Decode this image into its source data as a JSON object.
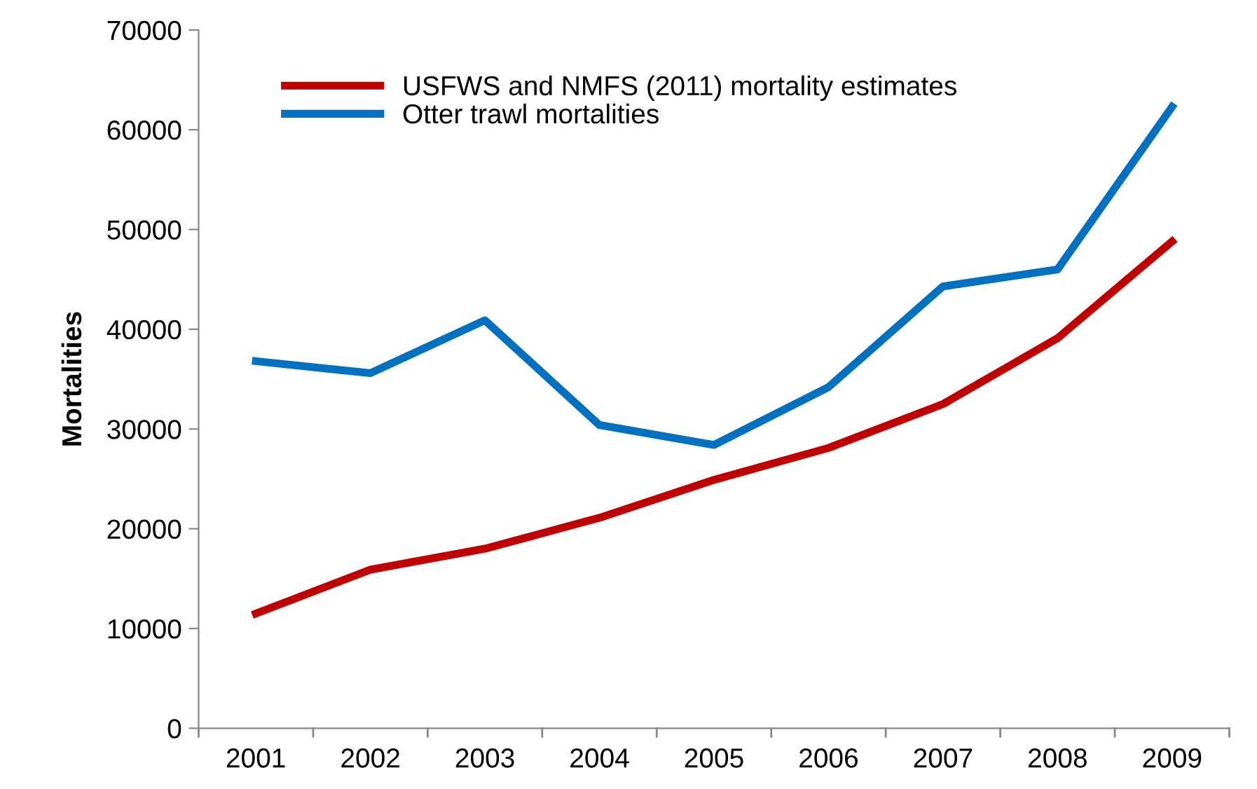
{
  "chart_data": {
    "type": "line",
    "ylabel": "Mortalities",
    "categories": [
      "2001",
      "2002",
      "2003",
      "2004",
      "2005",
      "2006",
      "2007",
      "2008",
      "2009"
    ],
    "series": [
      {
        "name": "USFWS and NMFS (2011) mortality estimates",
        "color": "#c00000",
        "values": [
          11500,
          15900,
          18000,
          21100,
          24900,
          28100,
          32500,
          39100,
          48800
        ]
      },
      {
        "name": "Otter trawl mortalities",
        "color": "#0070c0",
        "values": [
          36800,
          35600,
          40900,
          30400,
          28400,
          34200,
          44300,
          46000,
          62300
        ]
      }
    ],
    "ylim": [
      0,
      70000
    ],
    "yticks": [
      0,
      10000,
      20000,
      30000,
      40000,
      50000,
      60000,
      70000
    ],
    "grid": false,
    "legend": "top left",
    "marker": "none",
    "line_style": "solid"
  }
}
